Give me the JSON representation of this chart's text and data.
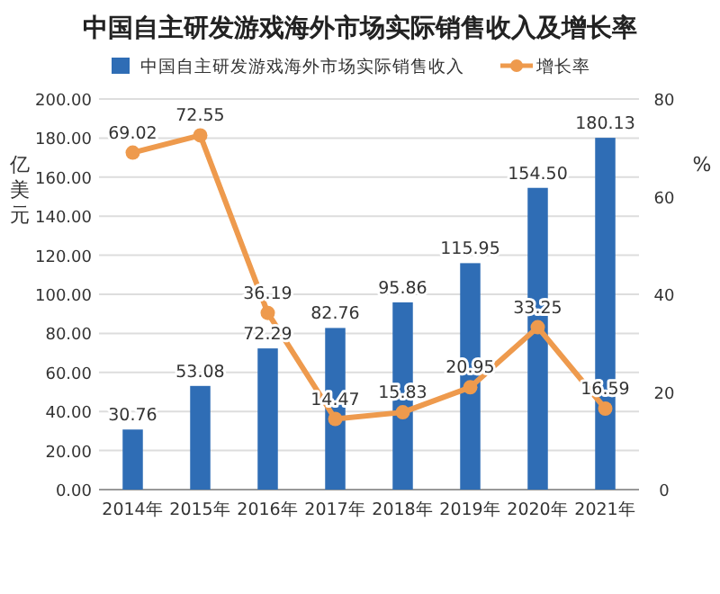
{
  "chart_data": {
    "type": "bar",
    "title": "中国自主研发游戏海外市场实际销售收入及增长率",
    "ylabel": "亿美元",
    "y2label": "%",
    "categories": [
      "2014年",
      "2015年",
      "2016年",
      "2017年",
      "2018年",
      "2019年",
      "2020年",
      "2021年"
    ],
    "series": [
      {
        "name": "中国自主研发游戏海外市场实际销售收入",
        "color": "#2f6db5",
        "values": [
          30.76,
          53.08,
          72.29,
          82.76,
          95.86,
          115.95,
          154.5,
          180.13
        ],
        "value_labels": [
          "30.76",
          "53.08",
          "72.29",
          "82.76",
          "95.86",
          "115.95",
          "154.50",
          "180.13"
        ]
      },
      {
        "name": "增长率",
        "type": "line",
        "axis": "y2",
        "color": "#ee9a4d",
        "marker": "circle",
        "values": [
          69.02,
          72.55,
          36.19,
          14.47,
          15.83,
          20.95,
          33.25,
          16.59
        ],
        "value_labels": [
          "69.02",
          "72.55",
          "36.19",
          "14.47",
          "15.83",
          "20.95",
          "33.25",
          "16.59"
        ]
      }
    ],
    "ylim": [
      0,
      200
    ],
    "yticks": [
      {
        "value": 0,
        "label": "0.00"
      },
      {
        "value": 20,
        "label": "20.00"
      },
      {
        "value": 40,
        "label": "40.00"
      },
      {
        "value": 60,
        "label": "60.00"
      },
      {
        "value": 80,
        "label": "80.00"
      },
      {
        "value": 100,
        "label": "100.00"
      },
      {
        "value": 120,
        "label": "120.00"
      },
      {
        "value": 140,
        "label": "140.00"
      },
      {
        "value": 160,
        "label": "160.00"
      },
      {
        "value": 180,
        "label": "180.00"
      },
      {
        "value": 200,
        "label": "200.00"
      }
    ],
    "y2lim": [
      0,
      80
    ],
    "y2ticks": [
      0,
      20,
      40,
      60,
      80
    ],
    "grid": "y",
    "legend": "top"
  }
}
